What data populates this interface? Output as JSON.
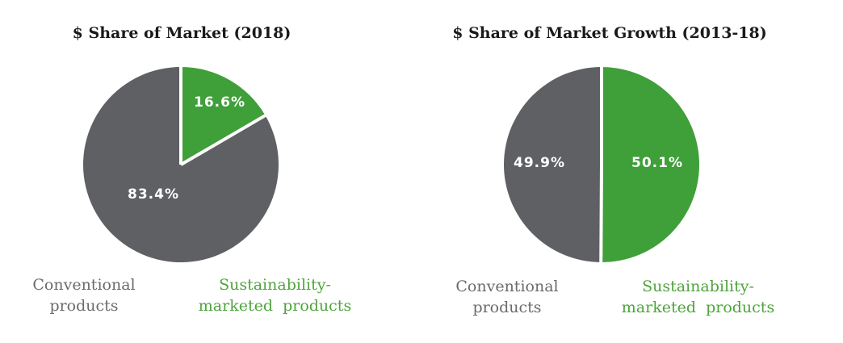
{
  "colors": {
    "conventional": "#5f6064",
    "sustainable": "#3f9f39",
    "divider": "#ffffff"
  },
  "chart_data": [
    {
      "type": "pie",
      "title": "$ Share of Market (2018)",
      "slices": [
        {
          "name": "Sustainability-marketed products",
          "value": 16.6,
          "label": "16.6%"
        },
        {
          "name": "Conventional products",
          "value": 83.4,
          "label": "83.4%"
        }
      ],
      "legend": {
        "conventional": [
          "Conventional",
          "products"
        ],
        "sustainable": [
          "Sustainability-",
          "marketed  products"
        ]
      }
    },
    {
      "type": "pie",
      "title": "$ Share of Market Growth (2013-18)",
      "slices": [
        {
          "name": "Sustainability-marketed products",
          "value": 50.1,
          "label": "50.1%"
        },
        {
          "name": "Conventional products",
          "value": 49.9,
          "label": "49.9%"
        }
      ],
      "legend": {
        "conventional": [
          "Conventional",
          "products"
        ],
        "sustainable": [
          "Sustainability-",
          "marketed  products"
        ]
      }
    }
  ]
}
